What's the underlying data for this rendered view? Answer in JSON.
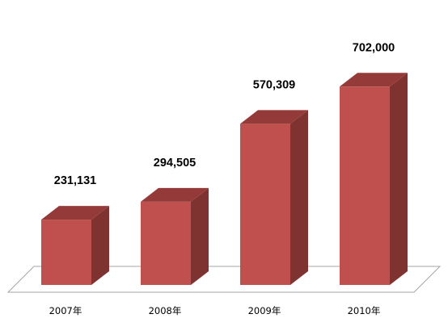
{
  "chart_data": {
    "type": "bar",
    "style": "3d-column",
    "categories": [
      "2007年",
      "2008年",
      "2009年",
      "2010年"
    ],
    "values": [
      231131,
      294505,
      570309,
      702000
    ],
    "value_labels": [
      "231,131",
      "294,505",
      "570,309",
      "702,000"
    ],
    "title": "",
    "xlabel": "",
    "ylabel": "",
    "ylim": [
      0,
      800000
    ],
    "grid": false,
    "legend": "none",
    "colors": {
      "bar_front": "#C0504D",
      "bar_side": "#7F3331",
      "bar_top": "#943B39",
      "floor_stroke": "#A6A6A6"
    }
  }
}
